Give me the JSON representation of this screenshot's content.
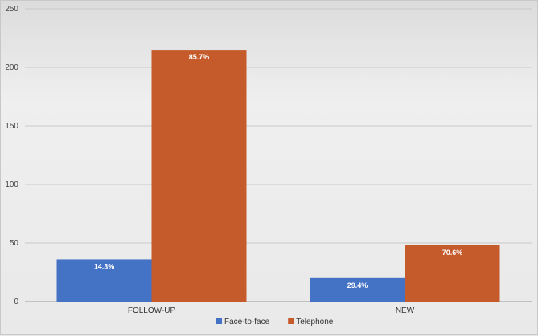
{
  "chart_data": {
    "type": "bar",
    "categories": [
      "FOLLOW-UP",
      "NEW"
    ],
    "series": [
      {
        "name": "Face-to-face",
        "values": [
          36,
          20
        ],
        "labels": [
          "14.3%",
          "29.4%"
        ],
        "color": "#4472C4"
      },
      {
        "name": "Telephone",
        "values": [
          215,
          48
        ],
        "labels": [
          "85.7%",
          "70.6%"
        ],
        "color": "#C55A2B"
      }
    ],
    "y_ticks": [
      "0",
      "50",
      "100",
      "150",
      "200",
      "250"
    ],
    "ylim": [
      0,
      250
    ],
    "grid": true,
    "legend_position": "bottom"
  }
}
